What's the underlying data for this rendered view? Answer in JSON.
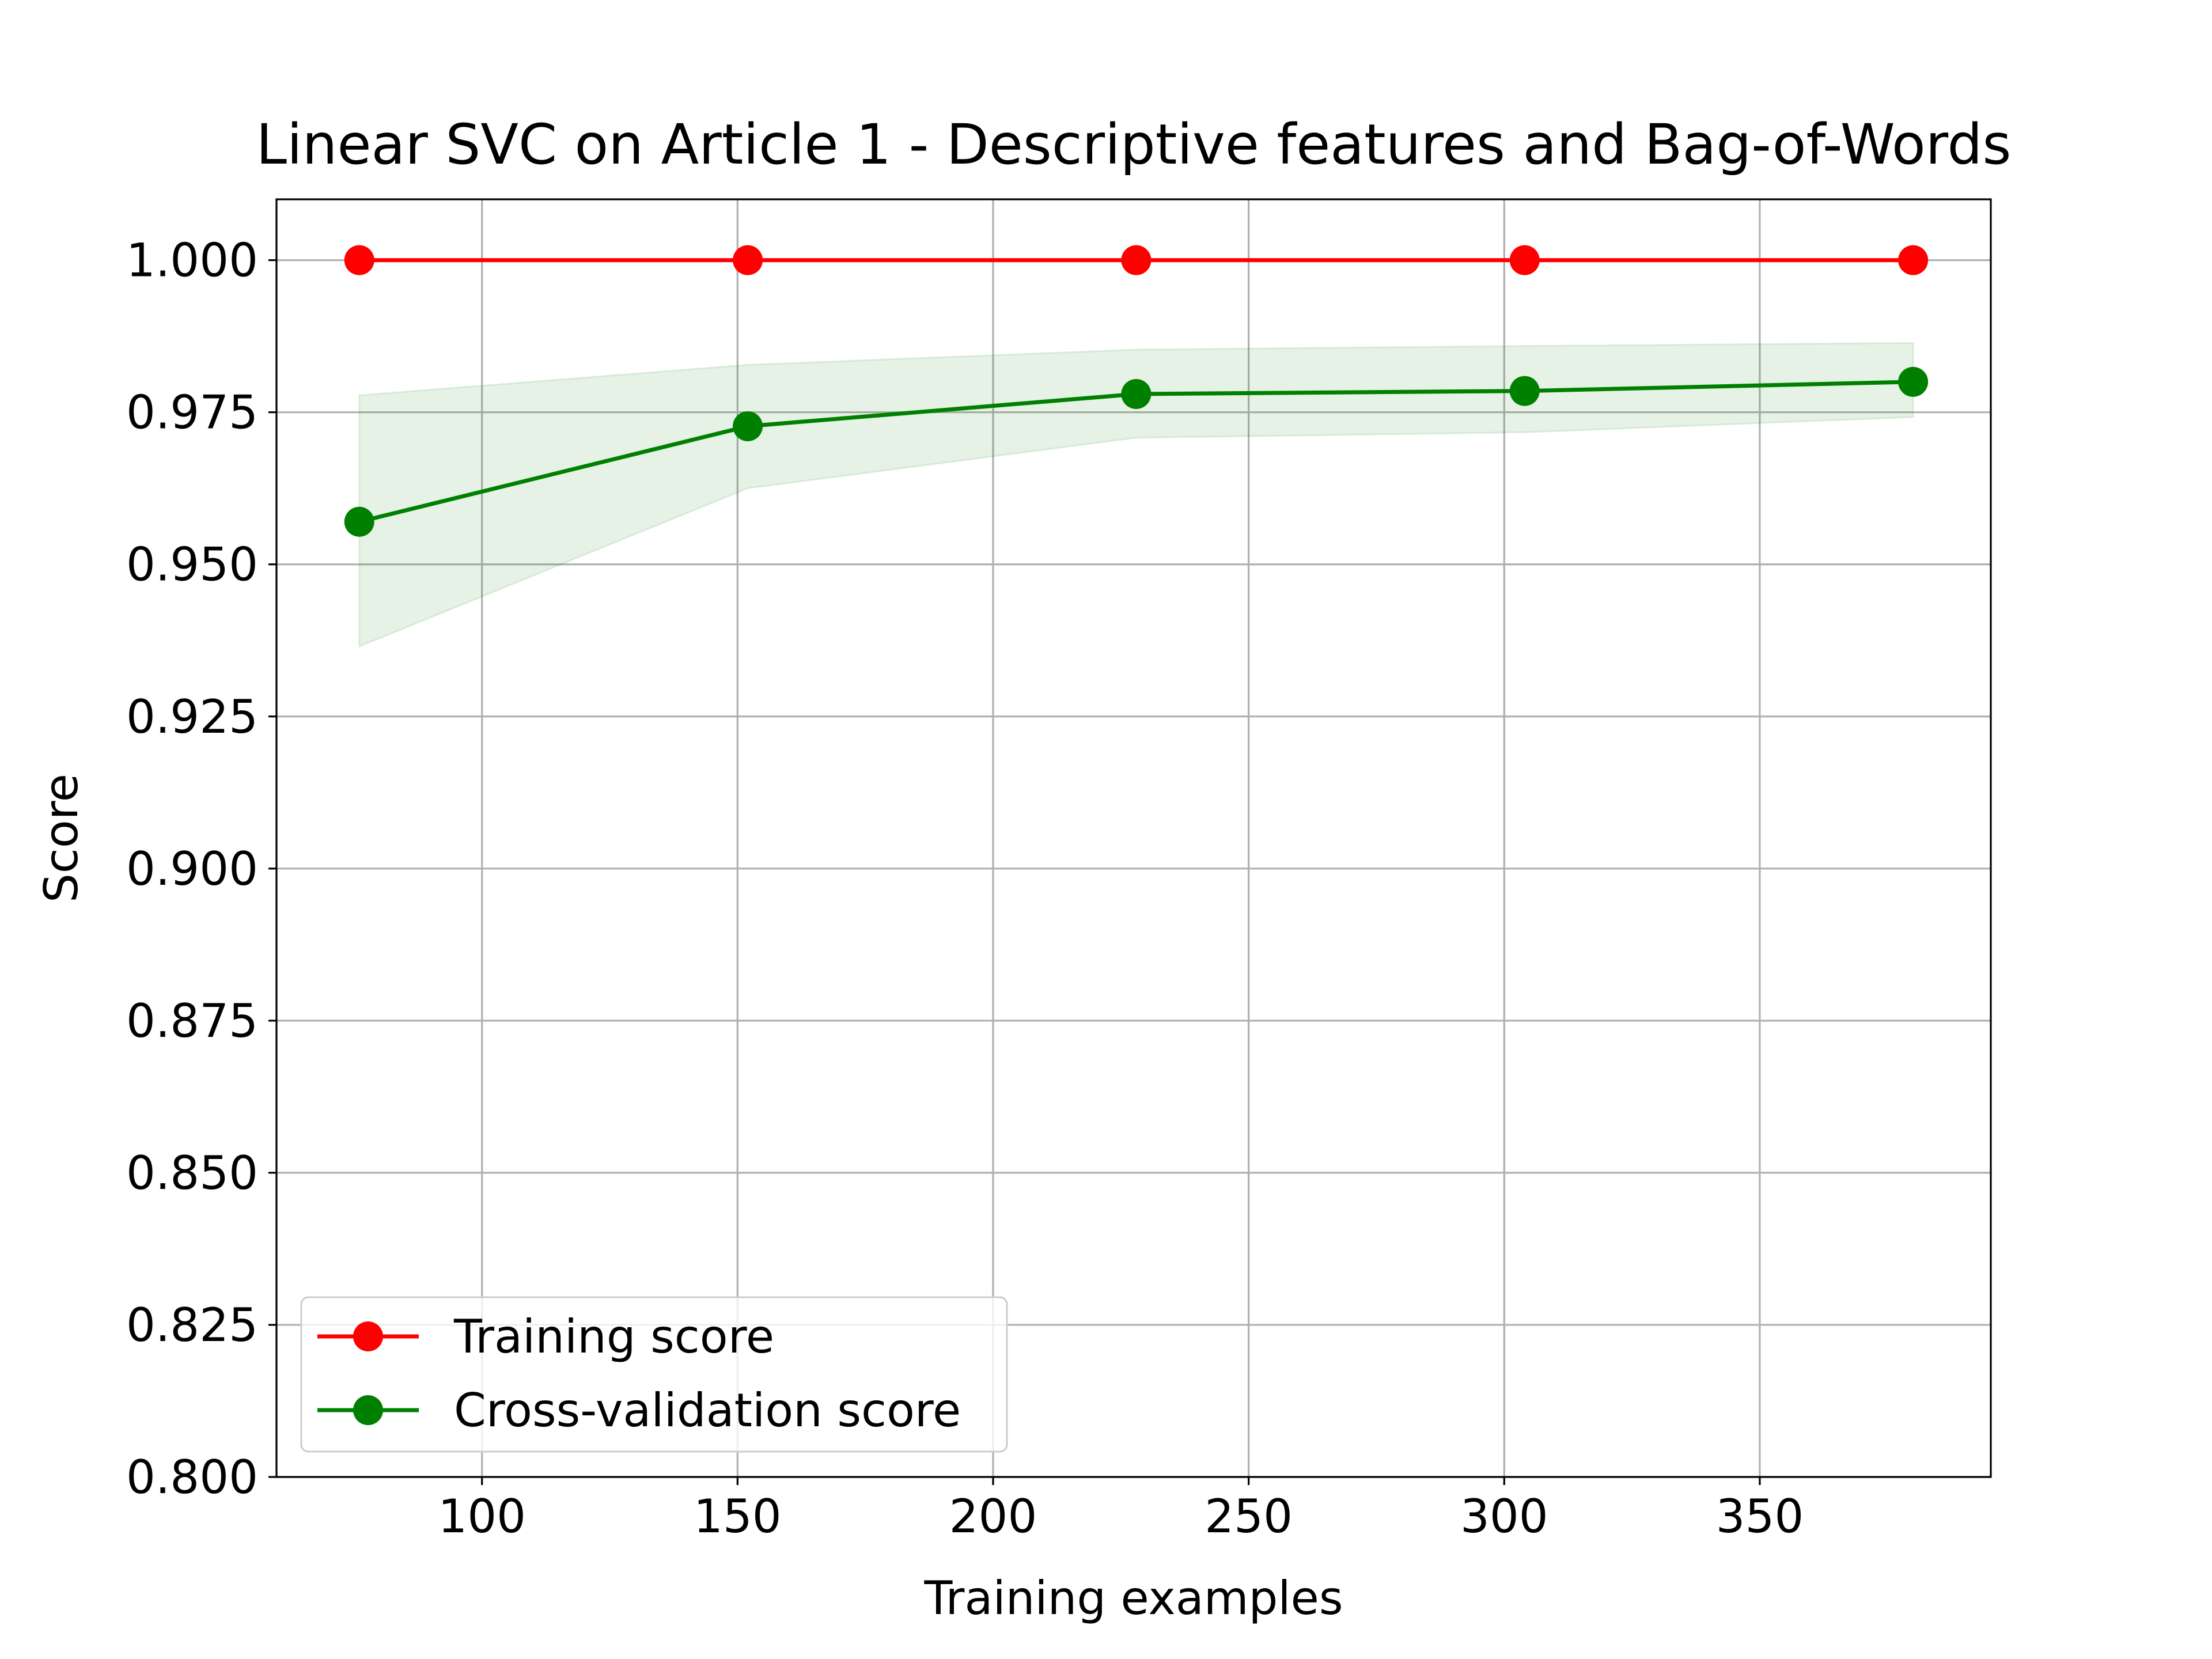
{
  "chart_data": {
    "type": "line",
    "title": "Linear SVC on Article 1 - Descriptive features and Bag-of-Words",
    "xlabel": "Training examples",
    "ylabel": "Score",
    "xlim": [
      59.8,
      395.2
    ],
    "ylim": [
      0.8,
      1.01
    ],
    "xticks": [
      100,
      150,
      200,
      250,
      300,
      350
    ],
    "xtick_labels": [
      "100",
      "150",
      "200",
      "250",
      "300",
      "350"
    ],
    "yticks": [
      0.8,
      0.825,
      0.85,
      0.875,
      0.9,
      0.925,
      0.95,
      0.975,
      1.0
    ],
    "ytick_labels": [
      "0.800",
      "0.825",
      "0.850",
      "0.875",
      "0.900",
      "0.925",
      "0.950",
      "0.975",
      "1.000"
    ],
    "grid": true,
    "legend_position": "lower-left",
    "x": [
      76,
      152,
      228,
      304,
      380
    ],
    "series": [
      {
        "name": "Training score",
        "color": "#ff0000",
        "marker": "circle",
        "values": [
          1.0,
          1.0,
          1.0,
          1.0,
          1.0
        ]
      },
      {
        "name": "Cross-validation score",
        "color": "#008000",
        "marker": "circle",
        "values": [
          0.957,
          0.9727,
          0.978,
          0.9785,
          0.98
        ],
        "band_lower": [
          0.9365,
          0.9625,
          0.9708,
          0.9717,
          0.9742
        ],
        "band_upper": [
          0.9778,
          0.9828,
          0.9853,
          0.9859,
          0.9864
        ],
        "band_color": "#008000"
      }
    ]
  }
}
